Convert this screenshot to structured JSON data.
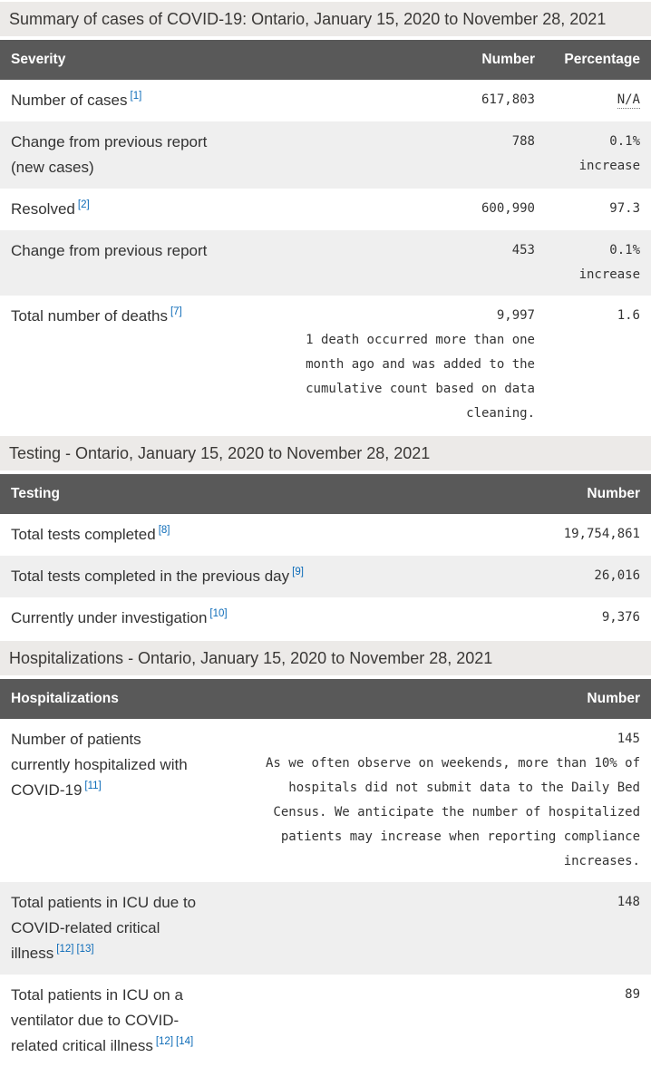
{
  "colors": {
    "section_title_bg": "#eceae8",
    "table_header_bg": "#595959",
    "table_header_text": "#ffffff",
    "row_alt_bg": "#efefef",
    "body_text": "#333333",
    "footnote_link_blue": "#0c6bb8"
  },
  "sections": [
    {
      "title": "Summary of cases of COVID-19: Ontario, January 15, 2020 to November 28, 2021",
      "table": {
        "columns": [
          "Severity",
          "Number",
          "Percentage"
        ],
        "rows": [
          {
            "label": "Number of cases",
            "refs": [
              "[1]"
            ],
            "number": "617,803",
            "percentage": "N/A"
          },
          {
            "label": "Change from previous report (new cases)",
            "refs": [],
            "number": "788",
            "percentage": "0.1% increase"
          },
          {
            "label": "Resolved",
            "refs": [
              "[2]"
            ],
            "number": "600,990",
            "percentage": "97.3"
          },
          {
            "label": "Change from previous report",
            "refs": [],
            "number": "453",
            "percentage": "0.1% increase"
          },
          {
            "label": "Total number of deaths",
            "refs": [
              "[7]"
            ],
            "number": "9,997",
            "number_note": "1 death occurred more than one month ago and was added to the cumulative count based on data cleaning.",
            "percentage": "1.6"
          }
        ]
      }
    },
    {
      "title": "Testing - Ontario, January 15, 2020 to November 28, 2021",
      "table": {
        "columns": [
          "Testing",
          "Number"
        ],
        "rows": [
          {
            "label": "Total tests completed",
            "refs": [
              "[8]"
            ],
            "number": "19,754,861"
          },
          {
            "label": "Total tests completed in the previous day",
            "refs": [
              "[9]"
            ],
            "number": "26,016"
          },
          {
            "label": "Currently under investigation",
            "refs": [
              "[10]"
            ],
            "number": "9,376"
          }
        ]
      }
    },
    {
      "title": "Hospitalizations - Ontario, January 15, 2020 to November 28, 2021",
      "table": {
        "columns": [
          "Hospitalizations",
          "Number"
        ],
        "rows": [
          {
            "label": "Number of patients currently hospitalized with COVID-19",
            "refs": [
              "[11]"
            ],
            "number": "145",
            "number_note": "As we often observe on weekends, more than 10% of hospitals did not submit data to the Daily Bed Census. We anticipate the number of hospitalized patients may increase when reporting compliance increases."
          },
          {
            "label": "Total patients in ICU due to COVID-related critical illness",
            "refs": [
              "[12]",
              "[13]"
            ],
            "number": "148"
          },
          {
            "label": "Total patients in ICU on a ventilator due to COVID-related critical illness",
            "refs": [
              "[12]",
              "[14]"
            ],
            "number": "89"
          }
        ]
      }
    }
  ]
}
